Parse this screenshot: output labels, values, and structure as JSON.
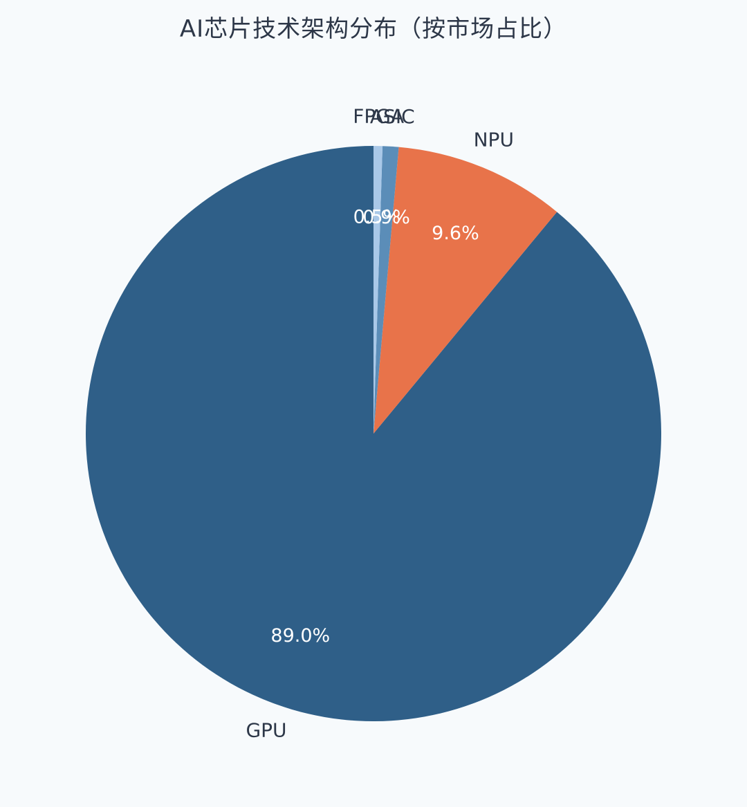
{
  "chart_data": {
    "type": "pie",
    "title": "AI芯片技术架构分布（按市场占比）",
    "categories": [
      "GPU",
      "NPU",
      "ASIC",
      "FPGA"
    ],
    "values": [
      89.0,
      9.6,
      0.9,
      0.5
    ],
    "labels_pct": [
      "89.0%",
      "9.6%",
      "0.9%",
      "0.5%"
    ],
    "colors": [
      "#2f5f88",
      "#e8734a",
      "#5b8db8",
      "#a9c8e8"
    ],
    "start_angle": "12 o'clock",
    "direction": "counterclockwise",
    "legend": "none"
  }
}
